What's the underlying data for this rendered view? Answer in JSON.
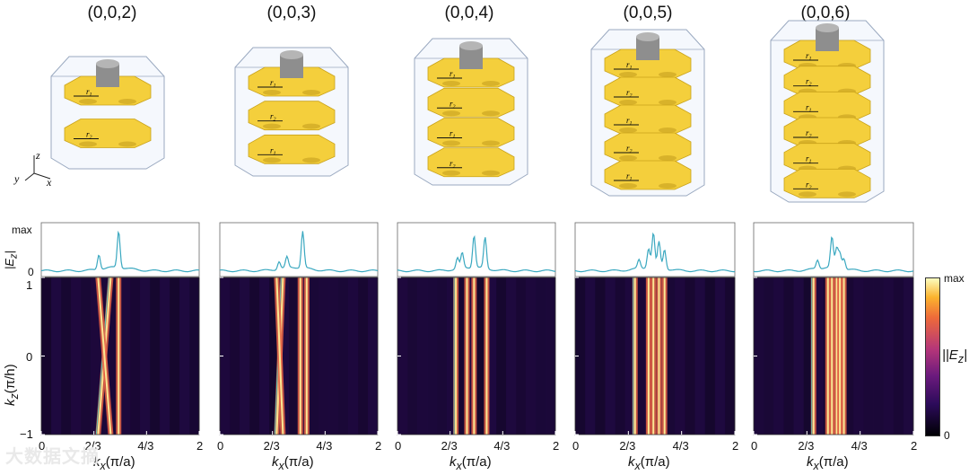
{
  "titles": [
    "(0,0,2)",
    "(0,0,3)",
    "(0,0,4)",
    "(0,0,5)",
    "(0,0,6)"
  ],
  "axes": {
    "profile_ylabel": "|E",
    "profile_ylabel_sub": "z",
    "profile_max": "max",
    "profile_zero": "0",
    "heat_ylabel": "k",
    "heat_ylabel_sub": "z",
    "heat_ylabel_unit": "(π/h)",
    "y_ticks": [
      "1",
      "0",
      "−1"
    ],
    "x_ticks": [
      "0",
      "2/3",
      "4/3",
      "2"
    ],
    "xlabel": "k",
    "xlabel_sub": "x",
    "xlabel_unit": "(π/a)"
  },
  "colorbar": {
    "max": "max",
    "min": "0",
    "label": "|E",
    "label_sub": "z"
  },
  "coord_axes": {
    "z": "z",
    "y": "y",
    "x": "x"
  },
  "ring_labels": {
    "r1": "r",
    "r1_sub": "1",
    "r2": "r",
    "r2_sub": "2"
  },
  "watermark": "大数据文摘",
  "colors": {
    "profile": "#3aa8c0",
    "gold": "#f4cf3c",
    "frame": "#9aa9c0"
  },
  "chart_data": [
    {
      "type": "heatmap",
      "title": "(0,0,2)",
      "xlabel": "k_x(π/a)",
      "ylabel": "k_z(π/h)",
      "xlim": [
        0,
        2
      ],
      "ylim": [
        -1,
        1
      ],
      "bands": [
        {
          "x_at_kz_minus1": 0.72,
          "x_at_kz_plus1": 0.88
        },
        {
          "x_at_kz_minus1": 0.88,
          "x_at_kz_plus1": 0.72
        },
        {
          "x_at_kz_minus1": 0.98,
          "x_at_kz_plus1": 0.98
        }
      ],
      "profile_peaks": [
        {
          "x": 0.73,
          "value": 0.35
        },
        {
          "x": 0.98,
          "value": 0.85
        }
      ]
    },
    {
      "type": "heatmap",
      "title": "(0,0,3)",
      "xlabel": "k_x(π/a)",
      "ylabel": "k_z(π/h)",
      "xlim": [
        0,
        2
      ],
      "ylim": [
        -1,
        1
      ],
      "bands": [
        {
          "x_at_kz_minus1": 0.72,
          "x_at_kz_plus1": 0.8
        },
        {
          "x_at_kz_minus1": 0.8,
          "x_at_kz_plus1": 0.72
        },
        {
          "x_at_kz_minus1": 1.02,
          "x_at_kz_plus1": 1.02
        },
        {
          "x_at_kz_minus1": 1.1,
          "x_at_kz_plus1": 1.1
        }
      ],
      "profile_peaks": [
        {
          "x": 0.75,
          "value": 0.18
        },
        {
          "x": 0.85,
          "value": 0.25
        },
        {
          "x": 1.05,
          "value": 0.85
        }
      ]
    },
    {
      "type": "heatmap",
      "title": "(0,0,4)",
      "xlabel": "k_x(π/a)",
      "ylabel": "k_z(π/h)",
      "xlim": [
        0,
        2
      ],
      "ylim": [
        -1,
        1
      ],
      "bands": [
        {
          "x_at_kz_minus1": 0.74,
          "x_at_kz_plus1": 0.74
        },
        {
          "x_at_kz_minus1": 0.88,
          "x_at_kz_plus1": 0.88
        },
        {
          "x_at_kz_minus1": 0.97,
          "x_at_kz_plus1": 0.97
        },
        {
          "x_at_kz_minus1": 1.13,
          "x_at_kz_plus1": 1.13
        }
      ],
      "profile_peaks": [
        {
          "x": 0.76,
          "value": 0.25
        },
        {
          "x": 0.82,
          "value": 0.35
        },
        {
          "x": 0.97,
          "value": 0.75
        },
        {
          "x": 1.11,
          "value": 0.72
        }
      ]
    },
    {
      "type": "heatmap",
      "title": "(0,0,5)",
      "xlabel": "k_x(π/a)",
      "ylabel": "k_z(π/h)",
      "xlim": [
        0,
        2
      ],
      "ylim": [
        -1,
        1
      ],
      "bands": [
        {
          "x_at_kz_minus1": 0.75,
          "x_at_kz_plus1": 0.75
        },
        {
          "x_at_kz_minus1": 0.92,
          "x_at_kz_plus1": 0.92
        },
        {
          "x_at_kz_minus1": 0.98,
          "x_at_kz_plus1": 0.98
        },
        {
          "x_at_kz_minus1": 1.05,
          "x_at_kz_plus1": 1.05
        },
        {
          "x_at_kz_minus1": 1.12,
          "x_at_kz_plus1": 1.12
        }
      ],
      "profile_peaks": [
        {
          "x": 0.8,
          "value": 0.2
        },
        {
          "x": 0.92,
          "value": 0.45
        },
        {
          "x": 0.98,
          "value": 0.8
        },
        {
          "x": 1.05,
          "value": 0.6
        },
        {
          "x": 1.12,
          "value": 0.45
        }
      ]
    },
    {
      "type": "heatmap",
      "title": "(0,0,6)",
      "xlabel": "k_x(π/a)",
      "ylabel": "k_z(π/h)",
      "xlim": [
        0,
        2
      ],
      "ylim": [
        -1,
        1
      ],
      "bands": [
        {
          "x_at_kz_minus1": 0.75,
          "x_at_kz_plus1": 0.75
        },
        {
          "x_at_kz_minus1": 0.93,
          "x_at_kz_plus1": 0.93
        },
        {
          "x_at_kz_minus1": 0.98,
          "x_at_kz_plus1": 0.98
        },
        {
          "x_at_kz_minus1": 1.04,
          "x_at_kz_plus1": 1.04
        },
        {
          "x_at_kz_minus1": 1.08,
          "x_at_kz_plus1": 1.08
        },
        {
          "x_at_kz_minus1": 1.13,
          "x_at_kz_plus1": 1.13
        }
      ],
      "profile_peaks": [
        {
          "x": 0.8,
          "value": 0.2
        },
        {
          "x": 0.98,
          "value": 0.7
        },
        {
          "x": 1.04,
          "value": 0.45
        },
        {
          "x": 1.08,
          "value": 0.35
        },
        {
          "x": 1.13,
          "value": 0.25
        }
      ]
    }
  ]
}
